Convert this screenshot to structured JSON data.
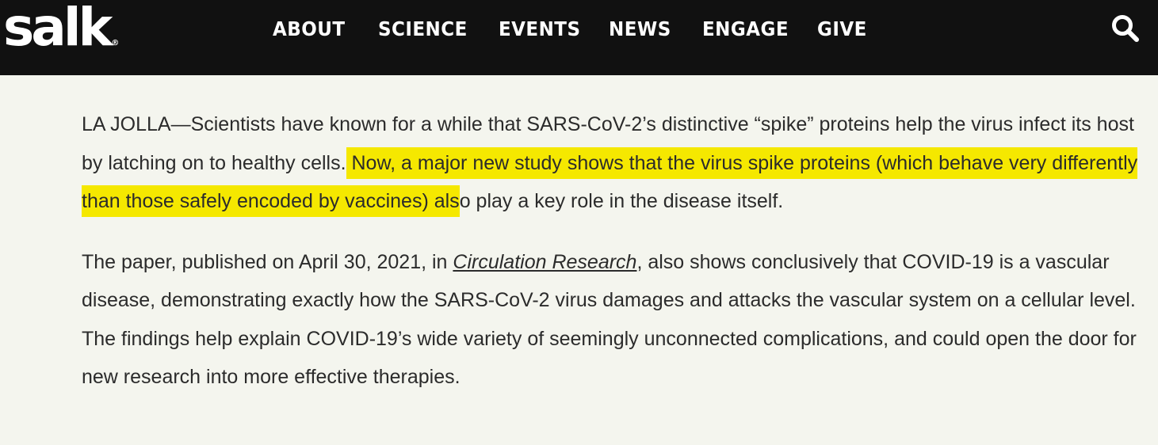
{
  "header": {
    "logo_text": "salk",
    "logo_mark": "®",
    "nav_items": [
      "ABOUT",
      "SCIENCE",
      "EVENTS",
      "NEWS",
      "ENGAGE",
      "GIVE"
    ],
    "search_icon": "search-icon",
    "background_color": "#111111"
  },
  "article": {
    "para1_before": "LA JOLLA—Scientists have known for a while that SARS-CoV-2’s distinctive “spike” proteins help the virus infect its host by latching on to healthy cells.",
    "para1_highlight": " Now, a major new study shows that the virus spike proteins (which behave very differently than those safely encoded by vaccines) als",
    "para1_after": "o play a key role in the disease itself.",
    "para2_before": "The paper, published on April 30, 2021, in ",
    "para2_journal": "Circulation Research",
    "para2_after": ", also shows conclusively that COVID-19 is a vascular disease, demonstrating exactly how the SARS-CoV-2 virus damages and attacks the vascular system on a cellular level. The findings help explain COVID-19’s wide variety of seemingly unconnected complications, and could open the door for new research into more effective therapies.",
    "highlight_color": "#f5e800"
  }
}
